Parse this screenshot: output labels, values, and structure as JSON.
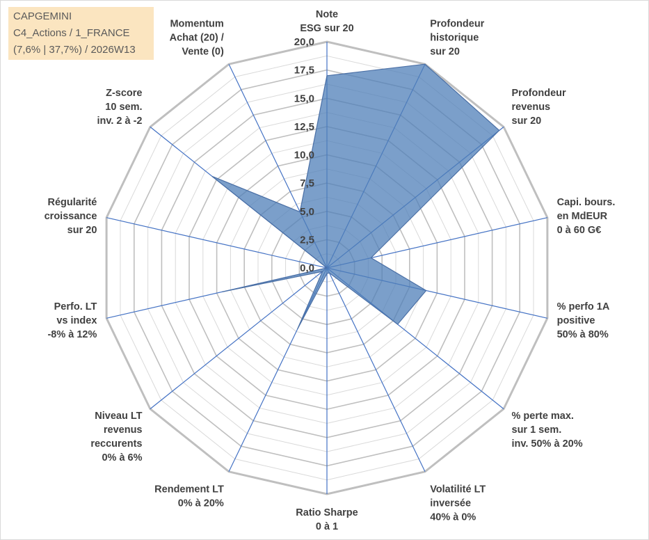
{
  "info_box": {
    "line1": "CAPGEMINI",
    "line2": "C4_Actions / 1_FRANCE",
    "line3": "(7,6% | 37,7%) / 2026W13"
  },
  "colors": {
    "fill": "#4f7fb8",
    "fill_opacity": 0.75,
    "series_line": "#4a6fa5",
    "grid_outer": "#bfbfbf",
    "grid_inner": "#d9d9d9",
    "spoke": "#4472c4",
    "info_box_bg": "#fbe5c0",
    "text": "#404040"
  },
  "chart_data": {
    "type": "radar",
    "title": "",
    "rlim": [
      0,
      20
    ],
    "rticks": [
      "0,0",
      "2,5",
      "5,0",
      "7,5",
      "10,0",
      "12,5",
      "15,0",
      "17,5",
      "20,0"
    ],
    "grid": true,
    "legend": "none",
    "categories": [
      [
        "Note",
        "ESG sur 20"
      ],
      [
        "Profondeur",
        "historique",
        "sur 20"
      ],
      [
        "Profondeur",
        "revenus",
        "sur 20"
      ],
      [
        "Capi. bours.",
        "en MdEUR",
        "0 à 60 G€"
      ],
      [
        "% perfo 1A",
        "positive",
        "50% à 80%"
      ],
      [
        "% perte max.",
        "sur 1 sem.",
        "inv. 50% à 20%"
      ],
      [
        "Volatilité LT",
        "inversée",
        "40% à 0%"
      ],
      [
        "Ratio Sharpe",
        "0 à 1"
      ],
      [
        "Rendement LT",
        "0% à 20%"
      ],
      [
        "Niveau LT",
        "revenus",
        "reccurents",
        "0% à 6%"
      ],
      [
        "Perfo. LT",
        "vs index",
        "-8% à 12%"
      ],
      [
        "Régularité",
        "croissance",
        "sur 20"
      ],
      [
        "Z-score",
        "10 sem.",
        "inv. 2 à -2"
      ],
      [
        "Momentum",
        "Achat (20) /",
        "Vente (0)"
      ]
    ],
    "series": [
      {
        "values": [
          17.0,
          20.0,
          19.5,
          4.0,
          9.0,
          8.0,
          0.5,
          0.5,
          6.0,
          0.5,
          9.5,
          0.0,
          13.0,
          5.5
        ]
      }
    ]
  }
}
